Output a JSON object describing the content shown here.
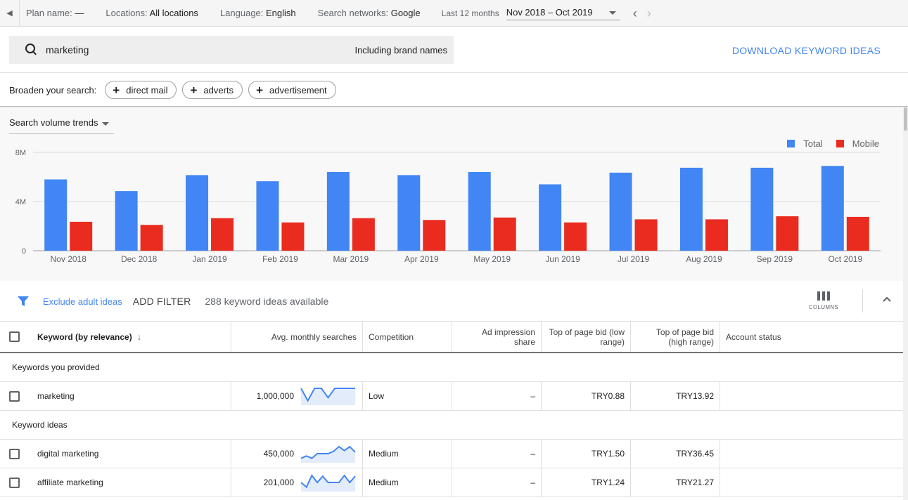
{
  "topbar": {
    "plan_label": "Plan name:",
    "plan_value": "—",
    "locations_label": "Locations:",
    "locations_value": "All locations",
    "language_label": "Language:",
    "language_value": "English",
    "networks_label": "Search networks:",
    "networks_value": "Google",
    "period_label": "Last 12 months",
    "date_range": "Nov 2018 – Oct 2019"
  },
  "search": {
    "query": "marketing",
    "brand_toggle": "Including brand names",
    "download_label": "DOWNLOAD KEYWORD IDEAS"
  },
  "broaden": {
    "label": "Broaden your search:",
    "chips": [
      "direct mail",
      "adverts",
      "advertisement"
    ]
  },
  "trend": {
    "selector_label": "Search volume trends",
    "legend_total": "Total",
    "legend_mobile": "Mobile"
  },
  "colors": {
    "total": "#4285f4",
    "mobile": "#ea2b1f",
    "accent": "#4285f4"
  },
  "chart_data": {
    "type": "bar",
    "categories": [
      "Nov 2018",
      "Dec 2018",
      "Jan 2019",
      "Feb 2019",
      "Mar 2019",
      "Apr 2019",
      "May 2019",
      "Jun 2019",
      "Jul 2019",
      "Aug 2019",
      "Sep 2019",
      "Oct 2019"
    ],
    "series": [
      {
        "name": "Total",
        "values": [
          5800000,
          4850000,
          6150000,
          5650000,
          6400000,
          6150000,
          6400000,
          5400000,
          6350000,
          6750000,
          6750000,
          6900000
        ]
      },
      {
        "name": "Mobile",
        "values": [
          2350000,
          2100000,
          2650000,
          2300000,
          2650000,
          2500000,
          2700000,
          2300000,
          2550000,
          2550000,
          2800000,
          2750000
        ]
      }
    ],
    "yticks": [
      "0",
      "4M",
      "8M"
    ],
    "ylim": [
      0,
      8000000
    ],
    "legend": "top-right",
    "grid": true
  },
  "filters": {
    "exclude_adult": "Exclude adult ideas",
    "add_filter": "ADD FILTER",
    "available": "288 keyword ideas available",
    "columns_label": "COLUMNS"
  },
  "table": {
    "headers": {
      "keyword": "Keyword (by relevance)",
      "avg": "Avg. monthly searches",
      "competition": "Competition",
      "impression_1": "Ad impression",
      "impression_2": "share",
      "low_1": "Top of page bid (low",
      "low_2": "range)",
      "high_1": "Top of page bid",
      "high_2": "(high range)",
      "account": "Account status"
    },
    "group_provided": "Keywords you provided",
    "group_ideas": "Keyword ideas",
    "rows": [
      {
        "keyword": "marketing",
        "avg": "1,000,000",
        "competition": "Low",
        "impression": "–",
        "low": "TRY0.88",
        "high": "TRY13.92",
        "spark": [
          1.0,
          0.2,
          1.0,
          1.0,
          0.4,
          1.0,
          1.0,
          1.0,
          1.0
        ]
      },
      {
        "keyword": "digital marketing",
        "avg": "450,000",
        "competition": "Medium",
        "impression": "–",
        "low": "TRY1.50",
        "high": "TRY36.45",
        "spark": [
          0.2,
          0.35,
          0.2,
          0.5,
          0.5,
          0.5,
          0.65,
          0.95,
          0.7,
          0.95,
          0.6
        ]
      },
      {
        "keyword": "affiliate marketing",
        "avg": "201,000",
        "competition": "Medium",
        "impression": "–",
        "low": "TRY1.24",
        "high": "TRY21.27",
        "spark": [
          0.5,
          0.2,
          0.95,
          0.5,
          0.9,
          0.5,
          0.5,
          0.5,
          0.95,
          0.5,
          0.9
        ]
      }
    ]
  }
}
